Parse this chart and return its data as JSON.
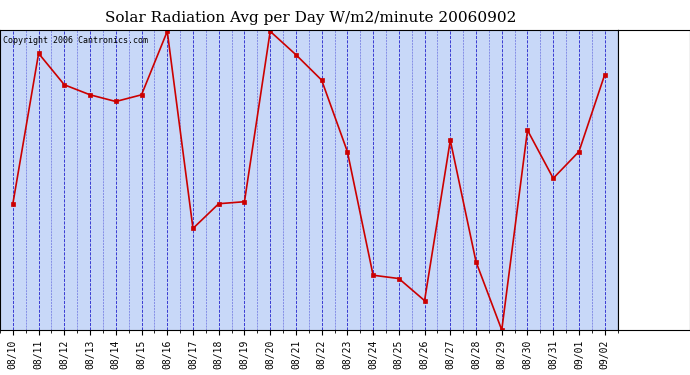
{
  "title": "Solar Radiation Avg per Day W/m2/minute 20060902",
  "copyright_text": "Copyright 2006 Cantronics.com",
  "dates": [
    "08/10",
    "08/11",
    "08/12",
    "08/13",
    "08/14",
    "08/15",
    "08/16",
    "08/17",
    "08/18",
    "08/19",
    "08/20",
    "08/21",
    "08/22",
    "08/23",
    "08/24",
    "08/25",
    "08/26",
    "08/27",
    "08/28",
    "08/29",
    "08/30",
    "08/31",
    "09/01",
    "09/02"
  ],
  "values": [
    252,
    477,
    430,
    415,
    405,
    415,
    510,
    215,
    252,
    255,
    510,
    475,
    437,
    330,
    145,
    140,
    107,
    347,
    165,
    63,
    362,
    290,
    330,
    445
  ],
  "line_color": "#cc0000",
  "marker_color": "#cc0000",
  "bg_color": "#c8d8f8",
  "grid_color": "#2222cc",
  "title_fontsize": 11,
  "copyright_fontsize": 6,
  "tick_fontsize": 7,
  "ylim_min": 63.0,
  "ylim_max": 512.0,
  "yticks": [
    63.0,
    100.4,
    137.8,
    175.2,
    212.7,
    250.1,
    287.5,
    324.9,
    362.3,
    399.8,
    437.2,
    474.6,
    512.0
  ]
}
